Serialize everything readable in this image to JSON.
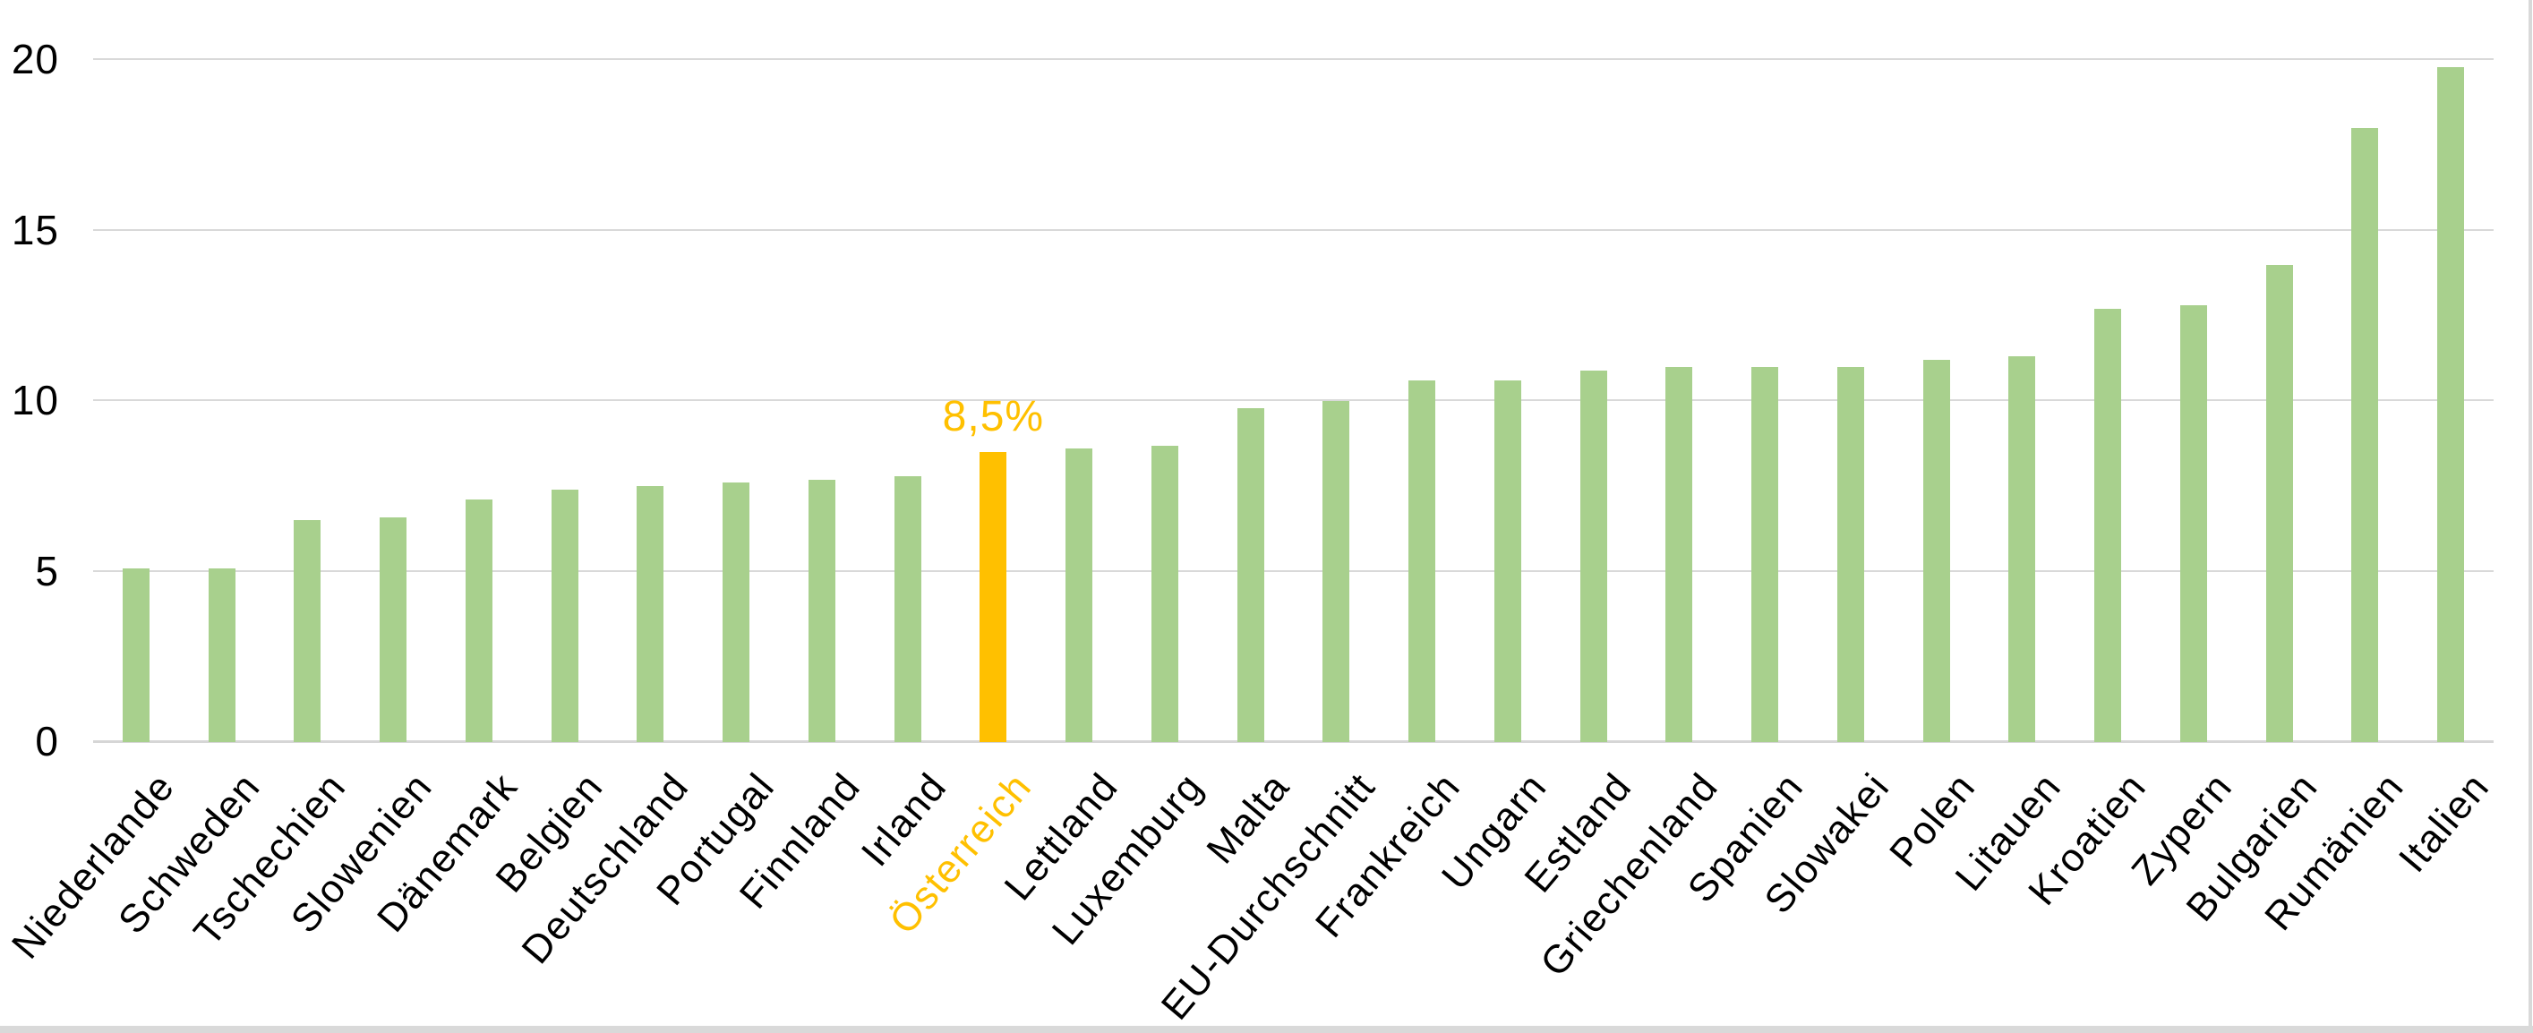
{
  "chart_data": {
    "type": "bar",
    "title": "",
    "unit": "%",
    "categories": [
      "Niederlande",
      "Schweden",
      "Tschechien",
      "Slowenien",
      "Dänemark",
      "Belgien",
      "Deutschland",
      "Portugal",
      "Finnland",
      "Irland",
      "Österreich",
      "Lettland",
      "Luxemburg",
      "Malta",
      "EU-Durchschnitt",
      "Frankreich",
      "Ungarn",
      "Estland",
      "Griechenland",
      "Spanien",
      "Slowakei",
      "Polen",
      "Litauen",
      "Kroatien",
      "Zypern",
      "Bulgarien",
      "Rumänien",
      "Italien"
    ],
    "values": [
      5.1,
      5.1,
      6.5,
      6.6,
      7.1,
      7.4,
      7.5,
      7.6,
      7.7,
      7.8,
      8.5,
      8.6,
      8.7,
      9.8,
      10.0,
      10.6,
      10.6,
      10.9,
      11.0,
      11.0,
      11.0,
      11.2,
      11.3,
      12.7,
      12.8,
      14.0,
      18.0,
      19.8
    ],
    "highlight": {
      "category": "Österreich",
      "index": 10,
      "label": "8,5%"
    },
    "yticks": [
      0,
      5,
      10,
      15,
      20
    ],
    "ylim": [
      0,
      20
    ],
    "grid": "horizontal",
    "legend": "none",
    "xlabel": "",
    "ylabel": "",
    "colors": {
      "bar": "#A8D08D",
      "highlight_bar": "#FFC000",
      "highlight_text": "#FFC000",
      "gridline": "#D9D9D9",
      "axis_line": "#D6D6D6",
      "tick_text": "#000000",
      "frame": "#D9D9D9"
    }
  }
}
